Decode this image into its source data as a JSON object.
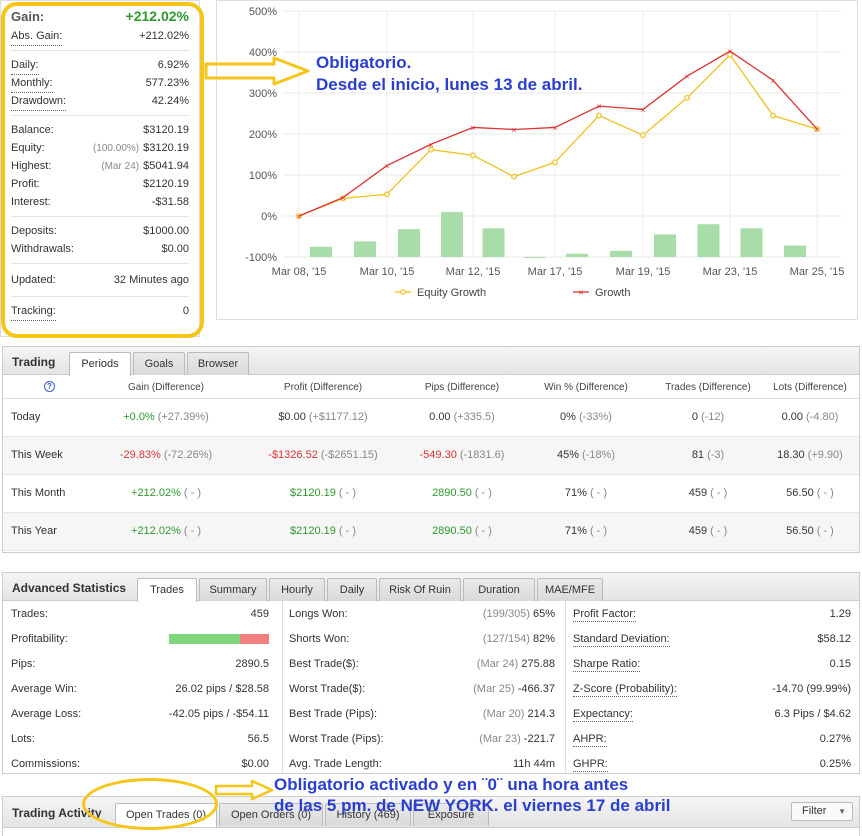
{
  "stats": {
    "gain": {
      "label": "Gain:",
      "value": "+212.02%"
    },
    "abs_gain": {
      "label": "Abs. Gain:",
      "value": "+212.02%"
    },
    "daily": {
      "label": "Daily:",
      "value": "6.92%"
    },
    "monthly": {
      "label": "Monthly:",
      "value": "577.23%"
    },
    "drawdown": {
      "label": "Drawdown:",
      "value": "42.24%"
    },
    "balance": {
      "label": "Balance:",
      "value": "$3120.19"
    },
    "equity": {
      "label": "Equity:",
      "sub": "(100.00%)",
      "value": "$3120.19"
    },
    "highest": {
      "label": "Highest:",
      "sub": "(Mar 24)",
      "value": "$5041.94"
    },
    "profit": {
      "label": "Profit:",
      "value": "$2120.19"
    },
    "interest": {
      "label": "Interest:",
      "value": "-$31.58"
    },
    "deposits": {
      "label": "Deposits:",
      "value": "$1000.00"
    },
    "withdrawals": {
      "label": "Withdrawals:",
      "value": "$0.00"
    },
    "updated": {
      "label": "Updated:",
      "value": "32 Minutes ago"
    },
    "tracking": {
      "label": "Tracking:",
      "value": "0"
    }
  },
  "annotations": {
    "top_line1": "Obligatorio.",
    "top_line2": "Desde el inicio, lunes 13 de abril.",
    "bottom_line1": "Obligatorio activado y en ¨0¨ una hora antes",
    "bottom_line2": "de las 5 pm. de NEW YORK. el viernes 17 de abril"
  },
  "colors": {
    "accent_green": "#2e9a2e",
    "accent_red": "#dd3333",
    "annotation_blue": "#2a3fcf",
    "highlight_yellow": "#f5c518"
  },
  "chart_data": {
    "type": "line",
    "x": [
      "Mar 08, '15",
      "Mar 09, '15",
      "Mar 10, '15",
      "Mar 11, '15",
      "Mar 12, '15",
      "Mar 13, '15",
      "Mar 17, '15",
      "Mar 18, '15",
      "Mar 19, '15",
      "Mar 20, '15",
      "Mar 23, '15",
      "Mar 24, '15",
      "Mar 25, '15"
    ],
    "x_tick_labels": [
      "Mar 08, '15",
      "Mar 10, '15",
      "Mar 12, '15",
      "Mar 17, '15",
      "Mar 19, '15",
      "Mar 23, '15",
      "Mar 25, '15"
    ],
    "y_ticks": [
      "500%",
      "400%",
      "300%",
      "200%",
      "100%",
      "0%",
      "-100%"
    ],
    "ylim": [
      -100,
      500
    ],
    "series": [
      {
        "name": "Equity Growth",
        "color": "#f0c020",
        "values": [
          0,
          43,
          53,
          162,
          148,
          96,
          131,
          245,
          197,
          288,
          393,
          245,
          212
        ]
      },
      {
        "name": "Growth",
        "color": "#dd3333",
        "values": [
          0,
          45,
          123,
          175,
          216,
          211,
          216,
          268,
          260,
          341,
          402,
          331,
          212
        ]
      }
    ],
    "bars": {
      "color": "#a8dca8",
      "values": [
        -75,
        -62,
        -32,
        10,
        -30,
        -100,
        -92,
        -85,
        -45,
        -20,
        -30,
        -72
      ]
    },
    "grid": true,
    "legend_position": "bottom"
  },
  "trading": {
    "title": "Trading",
    "tabs": [
      "Periods",
      "Goals",
      "Browser"
    ],
    "columns": [
      "Gain (Difference)",
      "Profit (Difference)",
      "Pips (Difference)",
      "Win % (Difference)",
      "Trades (Difference)",
      "Lots (Difference)"
    ],
    "help_icon": "?",
    "rows": [
      {
        "period": "Today",
        "gain": "+0.0%",
        "gain_diff": "(+27.39%)",
        "profit": "$0.00",
        "profit_diff": "(+$1177.12)",
        "pips": "0.00",
        "pips_diff": "(+335.5)",
        "win": "0%",
        "win_diff": "(-33%)",
        "trades": "0",
        "trades_diff": "(-12)",
        "lots": "0.00",
        "lots_diff": "(-4.80)"
      },
      {
        "period": "This Week",
        "gain": "-29.83%",
        "gain_diff": "(-72.26%)",
        "profit": "-$1326.52",
        "profit_diff": "(-$2651.15)",
        "pips": "-549.30",
        "pips_diff": "(-1831.6)",
        "win": "45%",
        "win_diff": "(-18%)",
        "trades": "81",
        "trades_diff": "(-3)",
        "lots": "18.30",
        "lots_diff": "(+9.90)"
      },
      {
        "period": "This Month",
        "gain": "+212.02%",
        "gain_diff": "( - )",
        "profit": "$2120.19",
        "profit_diff": "( - )",
        "pips": "2890.50",
        "pips_diff": "( - )",
        "win": "71%",
        "win_diff": "( - )",
        "trades": "459",
        "trades_diff": "( - )",
        "lots": "56.50",
        "lots_diff": "( - )"
      },
      {
        "period": "This Year",
        "gain": "+212.02%",
        "gain_diff": "( - )",
        "profit": "$2120.19",
        "profit_diff": "( - )",
        "pips": "2890.50",
        "pips_diff": "( - )",
        "win": "71%",
        "win_diff": "( - )",
        "trades": "459",
        "trades_diff": "( - )",
        "lots": "56.50",
        "lots_diff": "( - )"
      }
    ]
  },
  "advanced": {
    "title": "Advanced Statistics",
    "tabs": [
      "Trades",
      "Summary",
      "Hourly",
      "Daily",
      "Risk Of Ruin",
      "Duration",
      "MAE/MFE"
    ],
    "profitability_pct": 71,
    "col1": [
      {
        "label": "Trades:",
        "value": "459"
      },
      {
        "label": "Profitability:",
        "value": ""
      },
      {
        "label": "Pips:",
        "value": "2890.5"
      },
      {
        "label": "Average Win:",
        "value": "26.02 pips / $28.58"
      },
      {
        "label": "Average Loss:",
        "value": "-42.05 pips / -$54.11"
      },
      {
        "label": "Lots:",
        "value": "56.5"
      },
      {
        "label": "Commissions:",
        "value": "$0.00"
      }
    ],
    "col2": [
      {
        "label": "Longs Won:",
        "sub": "(199/305)",
        "value": "65%"
      },
      {
        "label": "Shorts Won:",
        "sub": "(127/154)",
        "value": "82%"
      },
      {
        "label": "Best Trade($):",
        "sub": "(Mar 24)",
        "value": "275.88"
      },
      {
        "label": "Worst Trade($):",
        "sub": "(Mar 25)",
        "value": "-466.37"
      },
      {
        "label": "Best Trade (Pips):",
        "sub": "(Mar 20)",
        "value": "214.3"
      },
      {
        "label": "Worst Trade (Pips):",
        "sub": "(Mar 23)",
        "value": "-221.7"
      },
      {
        "label": "Avg. Trade Length:",
        "sub": "",
        "value": "11h 44m"
      }
    ],
    "col3": [
      {
        "label": "Profit Factor:",
        "value": "1.29"
      },
      {
        "label": "Standard Deviation:",
        "value": "$58.12"
      },
      {
        "label": "Sharpe Ratio:",
        "value": "0.15"
      },
      {
        "label": "Z-Score (Probability):",
        "value": "-14.70 (99.99%)"
      },
      {
        "label": "Expectancy:",
        "value": "6.3 Pips / $4.62"
      },
      {
        "label": "AHPR:",
        "value": "0.27%"
      },
      {
        "label": "GHPR:",
        "value": "0.25%"
      }
    ]
  },
  "activity": {
    "title": "Trading Activity",
    "tabs": [
      "Open Trades (0)",
      "Open Orders (0)",
      "History (469)",
      "Exposure"
    ],
    "filter_label": "Filter"
  }
}
